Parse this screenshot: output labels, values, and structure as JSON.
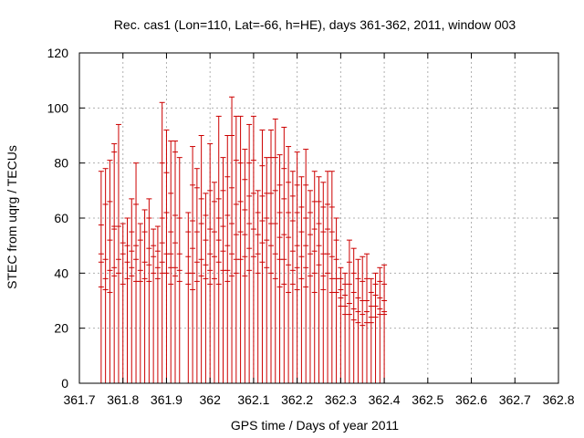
{
  "chart_data": {
    "type": "scatter",
    "style": "error-bars",
    "title": "Rec. cas1 (Lon=110, Lat=-66, h=HE), days 361-362, 2011, window 003",
    "xlabel": "GPS time / Days of year 2011",
    "ylabel": "STEC from uqrg / TECUs",
    "xlim": [
      361.7,
      362.8
    ],
    "ylim": [
      0,
      120
    ],
    "xticks": [
      "361.7",
      "361.8",
      "361.9",
      "362",
      "362.1",
      "362.2",
      "362.3",
      "362.4",
      "362.5",
      "362.6",
      "362.7",
      "362.8"
    ],
    "yticks": [
      "0",
      "20",
      "40",
      "60",
      "80",
      "100",
      "120"
    ],
    "grid": true,
    "color": "#cc0000",
    "points": [
      {
        "x": 361.75,
        "low": 0,
        "high": 77,
        "marks": [
          77,
          57.5,
          47,
          44,
          35
        ]
      },
      {
        "x": 361.76,
        "low": 0,
        "high": 78,
        "marks": [
          78,
          65,
          45,
          38,
          34
        ]
      },
      {
        "x": 361.77,
        "low": 0,
        "high": 81,
        "marks": [
          81,
          66,
          52,
          41,
          33
        ]
      },
      {
        "x": 361.78,
        "low": 0,
        "high": 87,
        "marks": [
          87,
          84,
          57,
          56,
          42,
          39
        ]
      },
      {
        "x": 361.79,
        "low": 0,
        "high": 94,
        "marks": [
          94,
          57,
          45,
          40
        ]
      },
      {
        "x": 361.8,
        "low": 0,
        "high": 58,
        "marks": [
          58,
          51,
          47,
          36
        ]
      },
      {
        "x": 361.81,
        "low": 0,
        "high": 60,
        "marks": [
          60,
          50,
          44,
          38
        ]
      },
      {
        "x": 361.82,
        "low": 0,
        "high": 67,
        "marks": [
          67,
          55,
          48,
          42,
          39
        ]
      },
      {
        "x": 361.83,
        "low": 0,
        "high": 80,
        "marks": [
          80,
          65,
          50,
          45,
          37
        ]
      },
      {
        "x": 361.84,
        "low": 0,
        "high": 58,
        "marks": [
          58,
          52,
          41,
          37
        ]
      },
      {
        "x": 361.85,
        "low": 0,
        "high": 63,
        "marks": [
          63,
          55,
          44,
          38
        ]
      },
      {
        "x": 361.86,
        "low": 0,
        "high": 67,
        "marks": [
          67,
          60,
          49,
          43,
          37
        ]
      },
      {
        "x": 361.87,
        "low": 0,
        "high": 56,
        "marks": [
          56,
          50,
          46,
          40
        ]
      },
      {
        "x": 361.88,
        "low": 0,
        "high": 57,
        "marks": [
          57,
          48,
          42,
          38
        ]
      },
      {
        "x": 361.89,
        "low": 0,
        "high": 102,
        "marks": [
          102,
          80,
          60,
          51,
          44,
          40
        ]
      },
      {
        "x": 361.9,
        "low": 0,
        "high": 92,
        "marks": [
          92,
          76.5,
          62,
          47,
          40
        ]
      },
      {
        "x": 361.91,
        "low": 0,
        "high": 88,
        "marks": [
          88,
          69,
          55,
          47,
          42,
          36
        ]
      },
      {
        "x": 361.92,
        "low": 0,
        "high": 88,
        "marks": [
          88,
          84,
          61,
          51,
          42,
          39
        ]
      },
      {
        "x": 361.93,
        "low": 0,
        "high": 82,
        "marks": [
          82,
          60,
          47,
          41,
          37
        ]
      },
      {
        "x": 361.95,
        "low": 0,
        "high": 62,
        "marks": [
          62,
          55,
          46,
          40,
          36
        ]
      },
      {
        "x": 361.96,
        "low": 0,
        "high": 86,
        "marks": [
          86,
          72,
          59,
          49,
          40,
          34
        ]
      },
      {
        "x": 361.97,
        "low": 0,
        "high": 78,
        "marks": [
          78,
          71,
          55,
          44,
          37
        ]
      },
      {
        "x": 361.98,
        "low": 0,
        "high": 90,
        "marks": [
          90,
          67,
          58,
          45,
          39
        ]
      },
      {
        "x": 361.99,
        "low": 0,
        "high": 69,
        "marks": [
          69,
          61,
          52,
          43,
          38
        ]
      },
      {
        "x": 362.0,
        "low": 0,
        "high": 87,
        "marks": [
          87,
          70,
          56,
          47,
          41,
          36
        ]
      },
      {
        "x": 362.01,
        "low": 0,
        "high": 73,
        "marks": [
          73,
          66,
          55,
          46,
          38
        ]
      },
      {
        "x": 362.02,
        "low": 0,
        "high": 97,
        "marks": [
          97,
          67,
          60,
          52,
          44,
          36
        ]
      },
      {
        "x": 362.03,
        "low": 0,
        "high": 82,
        "marks": [
          82,
          70,
          57,
          48,
          41
        ]
      },
      {
        "x": 362.04,
        "low": 0,
        "high": 90,
        "marks": [
          90,
          75,
          61,
          50,
          41,
          37
        ]
      },
      {
        "x": 362.05,
        "low": 0,
        "high": 104,
        "marks": [
          104,
          90,
          71,
          58,
          47,
          39
        ]
      },
      {
        "x": 362.06,
        "low": 0,
        "high": 97,
        "marks": [
          97,
          81,
          65,
          54,
          45,
          40
        ]
      },
      {
        "x": 362.07,
        "low": 0,
        "high": 97,
        "marks": [
          97,
          80,
          66,
          55,
          45
        ]
      },
      {
        "x": 362.08,
        "low": 0,
        "high": 85,
        "marks": [
          85,
          74,
          63,
          54,
          46,
          39
        ]
      },
      {
        "x": 362.09,
        "low": 0,
        "high": 94,
        "marks": [
          94,
          80,
          68,
          58,
          49,
          41
        ]
      },
      {
        "x": 362.1,
        "low": 0,
        "high": 97,
        "marks": [
          97,
          81,
          69,
          56,
          46
        ]
      },
      {
        "x": 362.11,
        "low": 0,
        "high": 70,
        "marks": [
          70,
          62,
          54,
          47,
          40
        ]
      },
      {
        "x": 362.12,
        "low": 0,
        "high": 92,
        "marks": [
          92,
          79,
          68,
          59,
          51,
          44
        ]
      },
      {
        "x": 362.13,
        "low": 0,
        "high": 82,
        "marks": [
          82,
          69,
          60,
          52,
          42
        ]
      },
      {
        "x": 362.14,
        "low": 0,
        "high": 92,
        "marks": [
          92,
          82,
          69,
          58,
          50,
          40
        ]
      },
      {
        "x": 362.15,
        "low": 0,
        "high": 96,
        "marks": [
          96,
          82,
          70,
          58,
          47,
          38
        ]
      },
      {
        "x": 362.16,
        "low": 0,
        "high": 83,
        "marks": [
          83,
          72,
          62,
          53,
          45,
          35
        ]
      },
      {
        "x": 362.17,
        "low": 0,
        "high": 93,
        "marks": [
          93,
          78,
          67,
          54,
          45,
          36
        ]
      },
      {
        "x": 362.18,
        "low": 0,
        "high": 86,
        "marks": [
          86,
          73,
          62,
          53,
          43,
          33
        ]
      },
      {
        "x": 362.19,
        "low": 0,
        "high": 77,
        "marks": [
          77,
          68,
          59,
          48,
          41,
          36
        ]
      },
      {
        "x": 362.2,
        "low": 0,
        "high": 84,
        "marks": [
          84,
          72,
          62,
          50,
          42,
          34
        ]
      },
      {
        "x": 362.21,
        "low": 0,
        "high": 75,
        "marks": [
          75,
          64,
          55,
          46,
          38
        ]
      },
      {
        "x": 362.22,
        "low": 0,
        "high": 85,
        "marks": [
          85,
          72,
          60,
          50,
          42,
          35
        ]
      },
      {
        "x": 362.23,
        "low": 0,
        "high": 70,
        "marks": [
          70,
          62,
          54,
          47,
          39
        ]
      },
      {
        "x": 362.24,
        "low": 0,
        "high": 77,
        "marks": [
          77,
          66,
          56,
          48,
          40,
          33
        ]
      },
      {
        "x": 362.25,
        "low": 0,
        "high": 75,
        "marks": [
          75,
          66,
          58,
          50,
          43
        ]
      },
      {
        "x": 362.26,
        "low": 0,
        "high": 73,
        "marks": [
          73,
          64,
          55,
          47,
          39,
          34
        ]
      },
      {
        "x": 362.27,
        "low": 0,
        "high": 77,
        "marks": [
          77,
          65,
          56,
          47,
          40
        ]
      },
      {
        "x": 362.28,
        "low": 0,
        "high": 77,
        "marks": [
          77,
          64,
          55,
          46,
          38,
          33
        ]
      },
      {
        "x": 362.29,
        "low": 0,
        "high": 60,
        "marks": [
          60,
          52,
          45,
          38,
          33
        ]
      },
      {
        "x": 362.3,
        "low": 0,
        "high": 42,
        "marks": [
          42,
          38,
          34,
          31,
          28
        ]
      },
      {
        "x": 362.31,
        "low": 0,
        "high": 40,
        "marks": [
          40,
          36,
          32,
          28,
          25
        ]
      },
      {
        "x": 362.32,
        "low": 0,
        "high": 52,
        "marks": [
          52,
          44,
          36,
          29,
          25
        ]
      },
      {
        "x": 362.33,
        "low": 0,
        "high": 49,
        "marks": [
          49,
          40,
          33,
          27,
          23
        ]
      },
      {
        "x": 362.34,
        "low": 0,
        "high": 45,
        "marks": [
          45,
          38,
          31,
          26,
          22
        ]
      },
      {
        "x": 362.35,
        "low": 0,
        "high": 46,
        "marks": [
          46,
          37,
          30,
          25,
          21
        ]
      },
      {
        "x": 362.36,
        "low": 0,
        "high": 47,
        "marks": [
          47,
          38,
          30,
          26,
          22
        ]
      },
      {
        "x": 362.37,
        "low": 0,
        "high": 38,
        "marks": [
          38,
          33,
          28,
          24,
          22
        ]
      },
      {
        "x": 362.38,
        "low": 0,
        "high": 40,
        "marks": [
          40,
          36,
          32,
          28,
          24
        ]
      },
      {
        "x": 362.39,
        "low": 0,
        "high": 42,
        "marks": [
          42,
          37,
          31,
          27,
          25
        ]
      },
      {
        "x": 362.4,
        "low": 0,
        "high": 43,
        "marks": [
          43,
          36,
          30,
          26,
          25
        ]
      }
    ]
  }
}
